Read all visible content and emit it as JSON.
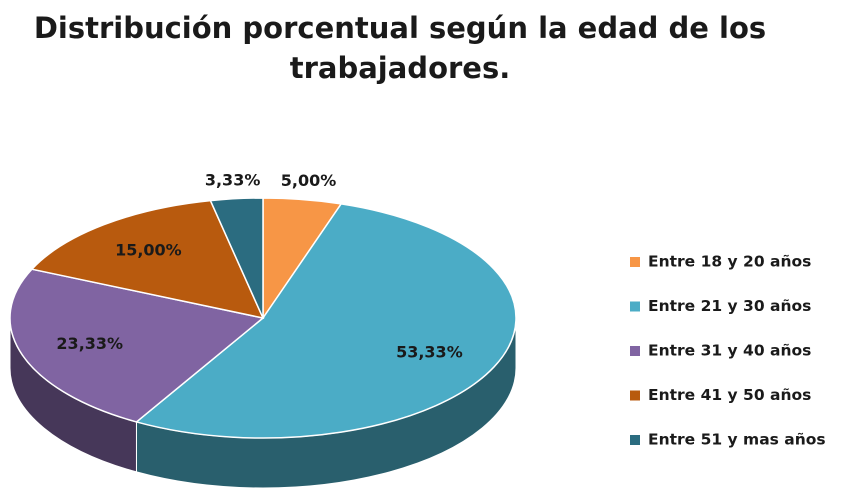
{
  "chart_data": {
    "type": "pie",
    "title": [
      "Distribución porcentual según la edad de los",
      "trabajadores."
    ],
    "categories": [
      "Entre 18 y 20 años",
      "Entre 21 y 30 años",
      "Entre 31 y 40 años",
      "Entre 41 y 50 años",
      "Entre 51 y mas años"
    ],
    "values": [
      5,
      53.33,
      23.33,
      15,
      3.33
    ],
    "value_labels": [
      "5,00%",
      "53,33%",
      "23,33%",
      "15,00%",
      "3,33%"
    ],
    "colors": [
      "#f79646",
      "#4bacc6",
      "#8064a2",
      "#b85a0e",
      "#2b6c80"
    ],
    "legend": "right"
  }
}
